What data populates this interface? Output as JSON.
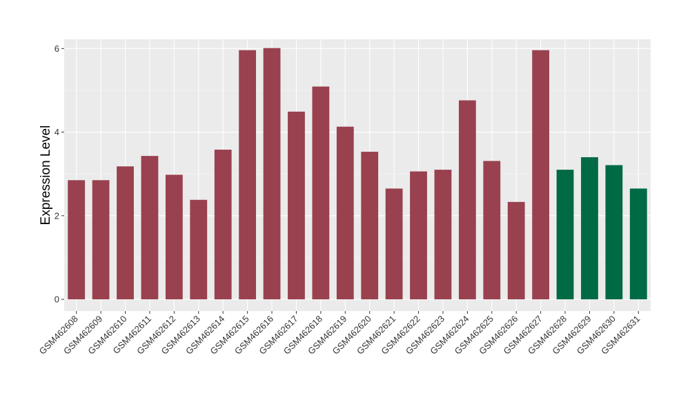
{
  "chart_data": {
    "type": "bar",
    "ylabel": "Expression Level",
    "xlabel": "",
    "ylim": [
      -0.28,
      6.22
    ],
    "yticks": [
      0,
      2,
      4,
      6
    ],
    "grid": true,
    "legend": "none",
    "colors": {
      "group_a": "#99414f",
      "group_b": "#006a45",
      "panel_bg": "#ebebeb",
      "grid_major": "#ffffff",
      "grid_minor": "#f5f5f5"
    },
    "categories": [
      "GSM462608",
      "GSM462609",
      "GSM462610",
      "GSM462611",
      "GSM462612",
      "GSM462613",
      "GSM462614",
      "GSM462615",
      "GSM462616",
      "GSM462617",
      "GSM462618",
      "GSM462619",
      "GSM462620",
      "GSM462621",
      "GSM462622",
      "GSM462623",
      "GSM462624",
      "GSM462625",
      "GSM462626",
      "GSM462627",
      "GSM462628",
      "GSM462629",
      "GSM462630",
      "GSM462631"
    ],
    "values": [
      2.85,
      2.85,
      3.18,
      3.43,
      2.98,
      2.38,
      3.58,
      5.96,
      6.01,
      4.49,
      5.09,
      4.13,
      3.53,
      2.65,
      3.06,
      3.1,
      4.76,
      3.31,
      2.33,
      5.96,
      3.1,
      3.4,
      3.21,
      2.65
    ],
    "groups": [
      "a",
      "a",
      "a",
      "a",
      "a",
      "a",
      "a",
      "a",
      "a",
      "a",
      "a",
      "a",
      "a",
      "a",
      "a",
      "a",
      "a",
      "a",
      "a",
      "a",
      "b",
      "b",
      "b",
      "b"
    ]
  }
}
